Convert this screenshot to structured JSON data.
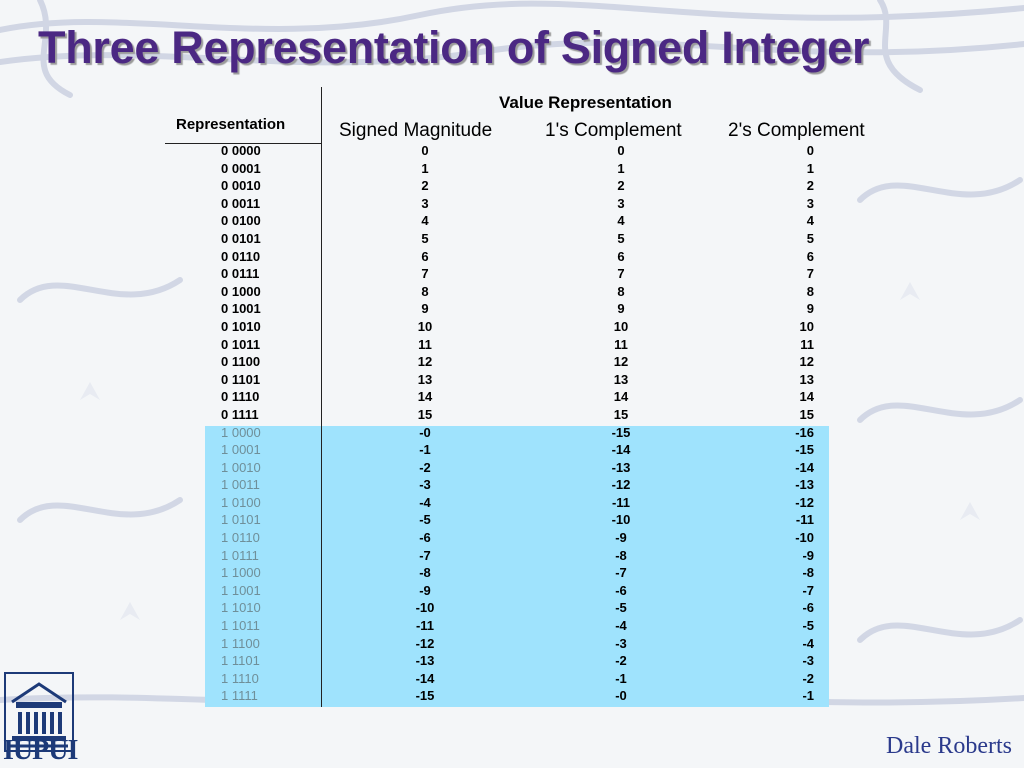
{
  "title": "Three Representation of Signed Integer",
  "table": {
    "group_header": "Value Representation",
    "row_header": "Representation",
    "columns": [
      "Signed Magnitude",
      "1's Complement",
      "2's Complement"
    ],
    "rows": [
      {
        "rep": "0 0000",
        "sm": "0",
        "oc": "0",
        "tc": "0"
      },
      {
        "rep": "0 0001",
        "sm": "1",
        "oc": "1",
        "tc": "1"
      },
      {
        "rep": "0 0010",
        "sm": "2",
        "oc": "2",
        "tc": "2"
      },
      {
        "rep": "0 0011",
        "sm": "3",
        "oc": "3",
        "tc": "3"
      },
      {
        "rep": "0 0100",
        "sm": "4",
        "oc": "4",
        "tc": "4"
      },
      {
        "rep": "0 0101",
        "sm": "5",
        "oc": "5",
        "tc": "5"
      },
      {
        "rep": "0 0110",
        "sm": "6",
        "oc": "6",
        "tc": "6"
      },
      {
        "rep": "0 0111",
        "sm": "7",
        "oc": "7",
        "tc": "7"
      },
      {
        "rep": "0 1000",
        "sm": "8",
        "oc": "8",
        "tc": "8"
      },
      {
        "rep": "0 1001",
        "sm": "9",
        "oc": "9",
        "tc": "9"
      },
      {
        "rep": "0 1010",
        "sm": "10",
        "oc": "10",
        "tc": "10"
      },
      {
        "rep": "0 1011",
        "sm": "11",
        "oc": "11",
        "tc": "11"
      },
      {
        "rep": "0 1100",
        "sm": "12",
        "oc": "12",
        "tc": "12"
      },
      {
        "rep": "0 1101",
        "sm": "13",
        "oc": "13",
        "tc": "13"
      },
      {
        "rep": "0 1110",
        "sm": "14",
        "oc": "14",
        "tc": "14"
      },
      {
        "rep": "0 1111",
        "sm": "15",
        "oc": "15",
        "tc": "15"
      },
      {
        "rep": "1 0000",
        "sm": "-0",
        "oc": "-15",
        "tc": "-16"
      },
      {
        "rep": "1 0001",
        "sm": "-1",
        "oc": "-14",
        "tc": "-15"
      },
      {
        "rep": "1 0010",
        "sm": "-2",
        "oc": "-13",
        "tc": "-14"
      },
      {
        "rep": "1 0011",
        "sm": "-3",
        "oc": "-12",
        "tc": "-13"
      },
      {
        "rep": "1 0100",
        "sm": "-4",
        "oc": "-11",
        "tc": "-12"
      },
      {
        "rep": "1 0101",
        "sm": "-5",
        "oc": "-10",
        "tc": "-11"
      },
      {
        "rep": "1 0110",
        "sm": "-6",
        "oc": "-9",
        "tc": "-10"
      },
      {
        "rep": "1 0111",
        "sm": "-7",
        "oc": "-8",
        "tc": "-9"
      },
      {
        "rep": "1 1000",
        "sm": "-8",
        "oc": "-7",
        "tc": "-8"
      },
      {
        "rep": "1 1001",
        "sm": "-9",
        "oc": "-6",
        "tc": "-7"
      },
      {
        "rep": "1 1010",
        "sm": "-10",
        "oc": "-5",
        "tc": "-6"
      },
      {
        "rep": "1 1011",
        "sm": "-11",
        "oc": "-4",
        "tc": "-5"
      },
      {
        "rep": "1 1100",
        "sm": "-12",
        "oc": "-3",
        "tc": "-4"
      },
      {
        "rep": "1 1101",
        "sm": "-13",
        "oc": "-2",
        "tc": "-3"
      },
      {
        "rep": "1 1110",
        "sm": "-14",
        "oc": "-1",
        "tc": "-2"
      },
      {
        "rep": "1 1111",
        "sm": "-15",
        "oc": "-0",
        "tc": "-1"
      }
    ]
  },
  "logo": {
    "text": "IUPUI",
    "icon": "university-building-icon"
  },
  "footer": {
    "author": "Dale Roberts"
  },
  "colors": {
    "title": "#4b2883",
    "highlight": "#9fe3fd",
    "author": "#2b3a8c"
  }
}
